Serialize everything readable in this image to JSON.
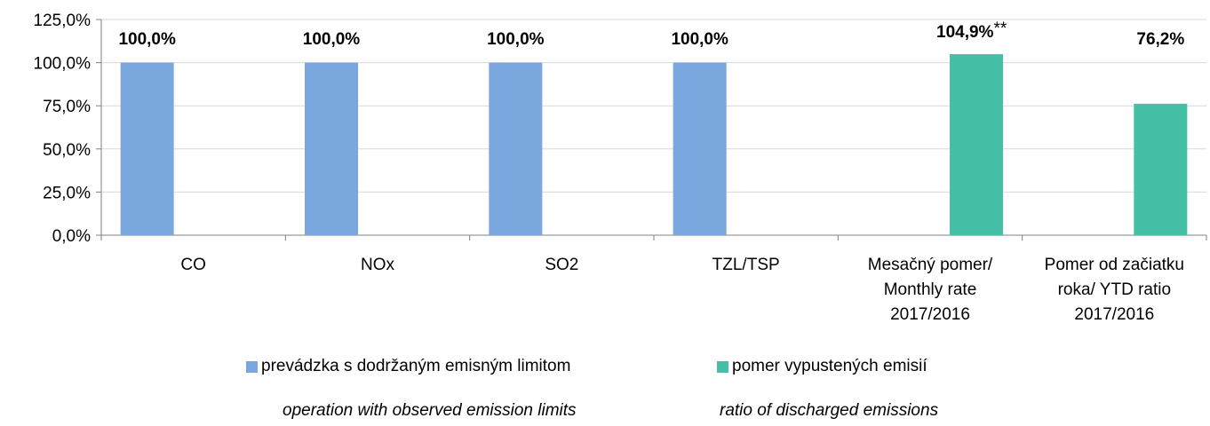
{
  "chart_data": {
    "type": "bar",
    "categories": [
      [
        "CO"
      ],
      [
        "NOx"
      ],
      [
        "SO2"
      ],
      [
        "TZL/TSP"
      ],
      [
        "Mesačný pomer/",
        "Monthly rate",
        "2017/2016"
      ],
      [
        "Pomer  od začiatku",
        "roka/ YTD ratio",
        "2017/2016"
      ]
    ],
    "series": [
      {
        "name": "prevádzka s dodržaným emisným limitom",
        "color": "#7BA7DF",
        "values": [
          100.0,
          100.0,
          100.0,
          100.0,
          null,
          null
        ]
      },
      {
        "name": "pomer vypustených emisií",
        "color": "#46BFA7",
        "values": [
          null,
          null,
          null,
          null,
          104.9,
          76.2
        ]
      }
    ],
    "data_labels": [
      "100,0%",
      "100,0%",
      "100,0%",
      "100,0%",
      "104,9%",
      "76,2%"
    ],
    "annotation": "**",
    "ylim": [
      0,
      125
    ],
    "yticks": [
      0,
      25,
      50,
      75,
      100,
      125
    ],
    "ytick_labels": [
      "0,0%",
      "25,0%",
      "50,0%",
      "75,0%",
      "100,0%",
      "125,0%"
    ],
    "grid": true,
    "legend_position": "bottom"
  },
  "legend": {
    "item1": "prevádzka s dodržaným emisným limitom",
    "item2": "pomer vypustených emisií",
    "sub1": "operation with observed emission limits",
    "sub2": "ratio of discharged emissions"
  }
}
